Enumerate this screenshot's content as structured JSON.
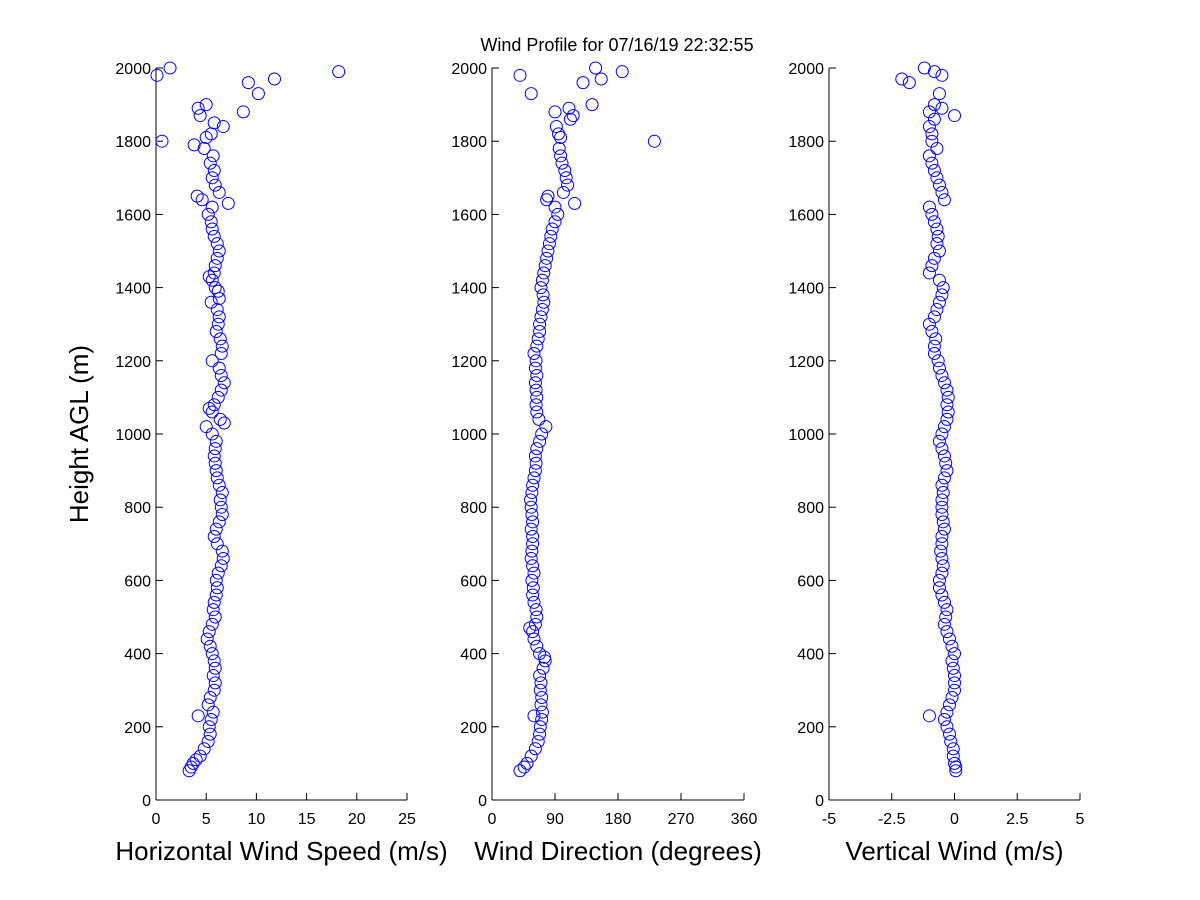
{
  "figure": {
    "title": "Wind Profile for  07/16/19 22:32:55"
  },
  "chart_data": [
    {
      "type": "scatter",
      "xlabel": "Horizontal Wind Speed (m/s)",
      "ylabel": "Height AGL (m)",
      "xlim": [
        0,
        25
      ],
      "ylim": [
        0,
        2000
      ],
      "xticks": [
        0,
        5,
        10,
        15,
        20,
        25
      ],
      "xtick_labels": [
        "0",
        "5",
        "10",
        "15",
        "20",
        "25"
      ],
      "yticks": [
        0,
        200,
        400,
        600,
        800,
        1000,
        1200,
        1400,
        1600,
        1800,
        2000
      ],
      "ytick_labels": [
        "0",
        "200",
        "400",
        "600",
        "800",
        "1000",
        "1200",
        "1400",
        "1600",
        "1800",
        "2000"
      ],
      "marker": "open-circle",
      "color": "#0000ff",
      "points": [
        [
          3.3,
          80
        ],
        [
          3.5,
          90
        ],
        [
          3.7,
          100
        ],
        [
          4.0,
          110
        ],
        [
          4.4,
          120
        ],
        [
          4.8,
          140
        ],
        [
          5.2,
          160
        ],
        [
          5.4,
          180
        ],
        [
          5.3,
          200
        ],
        [
          5.5,
          220
        ],
        [
          4.2,
          230
        ],
        [
          5.7,
          240
        ],
        [
          5.2,
          260
        ],
        [
          5.4,
          280
        ],
        [
          5.8,
          300
        ],
        [
          5.9,
          320
        ],
        [
          5.7,
          340
        ],
        [
          5.9,
          360
        ],
        [
          5.8,
          380
        ],
        [
          5.6,
          400
        ],
        [
          5.4,
          420
        ],
        [
          5.1,
          440
        ],
        [
          5.3,
          460
        ],
        [
          5.6,
          480
        ],
        [
          5.9,
          500
        ],
        [
          5.7,
          520
        ],
        [
          5.8,
          540
        ],
        [
          6.0,
          560
        ],
        [
          6.1,
          580
        ],
        [
          6.0,
          600
        ],
        [
          6.2,
          620
        ],
        [
          6.5,
          640
        ],
        [
          6.7,
          660
        ],
        [
          6.6,
          680
        ],
        [
          6.1,
          700
        ],
        [
          5.8,
          720
        ],
        [
          6.0,
          740
        ],
        [
          6.3,
          760
        ],
        [
          6.6,
          780
        ],
        [
          6.5,
          800
        ],
        [
          6.4,
          820
        ],
        [
          6.6,
          840
        ],
        [
          6.3,
          860
        ],
        [
          6.1,
          880
        ],
        [
          6.0,
          900
        ],
        [
          5.9,
          920
        ],
        [
          5.8,
          940
        ],
        [
          5.9,
          960
        ],
        [
          6.0,
          980
        ],
        [
          5.6,
          1000
        ],
        [
          5.0,
          1020
        ],
        [
          6.8,
          1030
        ],
        [
          6.4,
          1040
        ],
        [
          5.6,
          1060
        ],
        [
          5.3,
          1070
        ],
        [
          5.8,
          1080
        ],
        [
          6.2,
          1100
        ],
        [
          6.5,
          1120
        ],
        [
          6.8,
          1140
        ],
        [
          6.5,
          1160
        ],
        [
          6.3,
          1180
        ],
        [
          5.6,
          1200
        ],
        [
          6.5,
          1220
        ],
        [
          6.6,
          1240
        ],
        [
          6.4,
          1260
        ],
        [
          6.0,
          1280
        ],
        [
          6.2,
          1300
        ],
        [
          6.3,
          1320
        ],
        [
          6.1,
          1340
        ],
        [
          5.5,
          1360
        ],
        [
          6.3,
          1370
        ],
        [
          6.2,
          1390
        ],
        [
          5.9,
          1400
        ],
        [
          5.6,
          1420
        ],
        [
          5.3,
          1430
        ],
        [
          5.8,
          1440
        ],
        [
          5.9,
          1460
        ],
        [
          6.1,
          1480
        ],
        [
          6.3,
          1500
        ],
        [
          6.1,
          1520
        ],
        [
          5.8,
          1540
        ],
        [
          5.6,
          1560
        ],
        [
          5.5,
          1580
        ],
        [
          5.2,
          1600
        ],
        [
          5.6,
          1620
        ],
        [
          7.2,
          1630
        ],
        [
          4.6,
          1640
        ],
        [
          4.1,
          1650
        ],
        [
          6.3,
          1660
        ],
        [
          5.9,
          1680
        ],
        [
          5.6,
          1700
        ],
        [
          5.8,
          1720
        ],
        [
          5.4,
          1740
        ],
        [
          5.7,
          1760
        ],
        [
          4.8,
          1780
        ],
        [
          3.8,
          1790
        ],
        [
          0.6,
          1800
        ],
        [
          5.0,
          1810
        ],
        [
          5.5,
          1820
        ],
        [
          6.7,
          1840
        ],
        [
          5.8,
          1850
        ],
        [
          4.4,
          1870
        ],
        [
          8.7,
          1880
        ],
        [
          4.2,
          1890
        ],
        [
          5.0,
          1900
        ],
        [
          10.2,
          1930
        ],
        [
          9.2,
          1960
        ],
        [
          11.8,
          1970
        ],
        [
          0.1,
          1980
        ],
        [
          18.2,
          1990
        ],
        [
          1.4,
          2000
        ]
      ]
    },
    {
      "type": "scatter",
      "xlabel": "Wind Direction (degrees)",
      "ylabel": "",
      "xlim": [
        0,
        360
      ],
      "ylim": [
        0,
        2000
      ],
      "xticks": [
        0,
        90,
        180,
        270,
        360
      ],
      "xtick_labels": [
        "0",
        "90",
        "180",
        "270",
        "360"
      ],
      "yticks": [
        0,
        200,
        400,
        600,
        800,
        1000,
        1200,
        1400,
        1600,
        1800,
        2000
      ],
      "ytick_labels": [
        "0",
        "200",
        "400",
        "600",
        "800",
        "1000",
        "1200",
        "1400",
        "1600",
        "1800",
        "2000"
      ],
      "marker": "open-circle",
      "color": "#0000ff",
      "points": [
        [
          40,
          80
        ],
        [
          46,
          90
        ],
        [
          50,
          100
        ],
        [
          56,
          120
        ],
        [
          62,
          140
        ],
        [
          66,
          160
        ],
        [
          68,
          180
        ],
        [
          69,
          200
        ],
        [
          71,
          220
        ],
        [
          60,
          230
        ],
        [
          72,
          240
        ],
        [
          70,
          260
        ],
        [
          71,
          280
        ],
        [
          69,
          300
        ],
        [
          70,
          320
        ],
        [
          68,
          340
        ],
        [
          73,
          360
        ],
        [
          76,
          380
        ],
        [
          75,
          390
        ],
        [
          68,
          400
        ],
        [
          64,
          420
        ],
        [
          60,
          440
        ],
        [
          58,
          460
        ],
        [
          54,
          470
        ],
        [
          62,
          480
        ],
        [
          64,
          500
        ],
        [
          63,
          520
        ],
        [
          60,
          540
        ],
        [
          58,
          560
        ],
        [
          59,
          580
        ],
        [
          57,
          600
        ],
        [
          60,
          620
        ],
        [
          58,
          640
        ],
        [
          56,
          660
        ],
        [
          57,
          680
        ],
        [
          58,
          700
        ],
        [
          58,
          720
        ],
        [
          56,
          740
        ],
        [
          58,
          760
        ],
        [
          57,
          780
        ],
        [
          56,
          800
        ],
        [
          55,
          820
        ],
        [
          57,
          840
        ],
        [
          58,
          860
        ],
        [
          60,
          880
        ],
        [
          62,
          900
        ],
        [
          63,
          920
        ],
        [
          62,
          940
        ],
        [
          64,
          960
        ],
        [
          68,
          980
        ],
        [
          71,
          1000
        ],
        [
          77,
          1020
        ],
        [
          67,
          1040
        ],
        [
          64,
          1060
        ],
        [
          63,
          1080
        ],
        [
          64,
          1100
        ],
        [
          63,
          1120
        ],
        [
          62,
          1140
        ],
        [
          64,
          1160
        ],
        [
          62,
          1180
        ],
        [
          63,
          1200
        ],
        [
          60,
          1220
        ],
        [
          64,
          1240
        ],
        [
          66,
          1260
        ],
        [
          68,
          1280
        ],
        [
          68,
          1300
        ],
        [
          70,
          1320
        ],
        [
          72,
          1340
        ],
        [
          74,
          1360
        ],
        [
          73,
          1380
        ],
        [
          70,
          1400
        ],
        [
          72,
          1420
        ],
        [
          74,
          1440
        ],
        [
          76,
          1460
        ],
        [
          78,
          1480
        ],
        [
          80,
          1500
        ],
        [
          82,
          1520
        ],
        [
          84,
          1540
        ],
        [
          86,
          1560
        ],
        [
          90,
          1580
        ],
        [
          94,
          1600
        ],
        [
          90,
          1620
        ],
        [
          118,
          1630
        ],
        [
          78,
          1640
        ],
        [
          80,
          1650
        ],
        [
          102,
          1660
        ],
        [
          108,
          1680
        ],
        [
          106,
          1700
        ],
        [
          104,
          1720
        ],
        [
          100,
          1740
        ],
        [
          98,
          1760
        ],
        [
          96,
          1780
        ],
        [
          232,
          1800
        ],
        [
          98,
          1810
        ],
        [
          95,
          1820
        ],
        [
          92,
          1840
        ],
        [
          112,
          1860
        ],
        [
          116,
          1870
        ],
        [
          90,
          1880
        ],
        [
          110,
          1890
        ],
        [
          143,
          1900
        ],
        [
          56,
          1930
        ],
        [
          130,
          1960
        ],
        [
          156,
          1970
        ],
        [
          40,
          1980
        ],
        [
          186,
          1990
        ],
        [
          148,
          2000
        ]
      ]
    },
    {
      "type": "scatter",
      "xlabel": "Vertical Wind (m/s)",
      "ylabel": "",
      "xlim": [
        -5,
        5
      ],
      "ylim": [
        0,
        2000
      ],
      "xticks": [
        -5,
        -2.5,
        0,
        2.5,
        5
      ],
      "xtick_labels": [
        "-5",
        "-2.5",
        "0",
        "2.5",
        "5"
      ],
      "yticks": [
        0,
        200,
        400,
        600,
        800,
        1000,
        1200,
        1400,
        1600,
        1800,
        2000
      ],
      "ytick_labels": [
        "0",
        "200",
        "400",
        "600",
        "800",
        "1000",
        "1200",
        "1400",
        "1600",
        "1800",
        "2000"
      ],
      "marker": "open-circle",
      "color": "#0000ff",
      "points": [
        [
          0.05,
          80
        ],
        [
          0.05,
          90
        ],
        [
          0.0,
          100
        ],
        [
          -0.05,
          120
        ],
        [
          -0.05,
          140
        ],
        [
          -0.15,
          160
        ],
        [
          -0.2,
          180
        ],
        [
          -0.3,
          200
        ],
        [
          -0.4,
          220
        ],
        [
          -1.0,
          230
        ],
        [
          -0.3,
          240
        ],
        [
          -0.2,
          260
        ],
        [
          -0.1,
          280
        ],
        [
          0.0,
          300
        ],
        [
          0.0,
          320
        ],
        [
          0.0,
          340
        ],
        [
          -0.05,
          360
        ],
        [
          -0.1,
          380
        ],
        [
          0.0,
          400
        ],
        [
          -0.1,
          420
        ],
        [
          -0.2,
          440
        ],
        [
          -0.3,
          460
        ],
        [
          -0.4,
          480
        ],
        [
          -0.35,
          500
        ],
        [
          -0.3,
          520
        ],
        [
          -0.4,
          540
        ],
        [
          -0.5,
          560
        ],
        [
          -0.6,
          580
        ],
        [
          -0.6,
          600
        ],
        [
          -0.5,
          620
        ],
        [
          -0.45,
          640
        ],
        [
          -0.5,
          660
        ],
        [
          -0.55,
          680
        ],
        [
          -0.5,
          700
        ],
        [
          -0.5,
          720
        ],
        [
          -0.4,
          740
        ],
        [
          -0.45,
          760
        ],
        [
          -0.5,
          780
        ],
        [
          -0.5,
          800
        ],
        [
          -0.5,
          820
        ],
        [
          -0.45,
          840
        ],
        [
          -0.5,
          860
        ],
        [
          -0.4,
          880
        ],
        [
          -0.3,
          900
        ],
        [
          -0.35,
          920
        ],
        [
          -0.4,
          940
        ],
        [
          -0.5,
          960
        ],
        [
          -0.6,
          980
        ],
        [
          -0.5,
          1000
        ],
        [
          -0.4,
          1020
        ],
        [
          -0.3,
          1040
        ],
        [
          -0.25,
          1060
        ],
        [
          -0.3,
          1080
        ],
        [
          -0.25,
          1100
        ],
        [
          -0.3,
          1120
        ],
        [
          -0.4,
          1140
        ],
        [
          -0.5,
          1160
        ],
        [
          -0.6,
          1180
        ],
        [
          -0.65,
          1200
        ],
        [
          -0.8,
          1220
        ],
        [
          -0.8,
          1240
        ],
        [
          -0.75,
          1260
        ],
        [
          -0.9,
          1280
        ],
        [
          -1.0,
          1300
        ],
        [
          -0.8,
          1320
        ],
        [
          -0.7,
          1340
        ],
        [
          -0.6,
          1360
        ],
        [
          -0.5,
          1380
        ],
        [
          -0.45,
          1400
        ],
        [
          -0.6,
          1420
        ],
        [
          -1.0,
          1440
        ],
        [
          -0.9,
          1460
        ],
        [
          -0.8,
          1480
        ],
        [
          -0.6,
          1500
        ],
        [
          -0.7,
          1520
        ],
        [
          -0.65,
          1540
        ],
        [
          -0.7,
          1560
        ],
        [
          -0.8,
          1580
        ],
        [
          -0.9,
          1600
        ],
        [
          -1.0,
          1620
        ],
        [
          -0.4,
          1640
        ],
        [
          -0.5,
          1660
        ],
        [
          -0.6,
          1680
        ],
        [
          -0.7,
          1700
        ],
        [
          -0.8,
          1720
        ],
        [
          -0.9,
          1740
        ],
        [
          -1.0,
          1760
        ],
        [
          -0.7,
          1780
        ],
        [
          -0.9,
          1800
        ],
        [
          -0.9,
          1820
        ],
        [
          -1.0,
          1840
        ],
        [
          -0.8,
          1860
        ],
        [
          0.0,
          1870
        ],
        [
          -1.0,
          1880
        ],
        [
          -0.5,
          1890
        ],
        [
          -0.8,
          1900
        ],
        [
          -0.6,
          1930
        ],
        [
          -1.8,
          1960
        ],
        [
          -2.1,
          1970
        ],
        [
          -0.5,
          1980
        ],
        [
          -0.8,
          1990
        ],
        [
          -1.2,
          2000
        ]
      ]
    }
  ]
}
